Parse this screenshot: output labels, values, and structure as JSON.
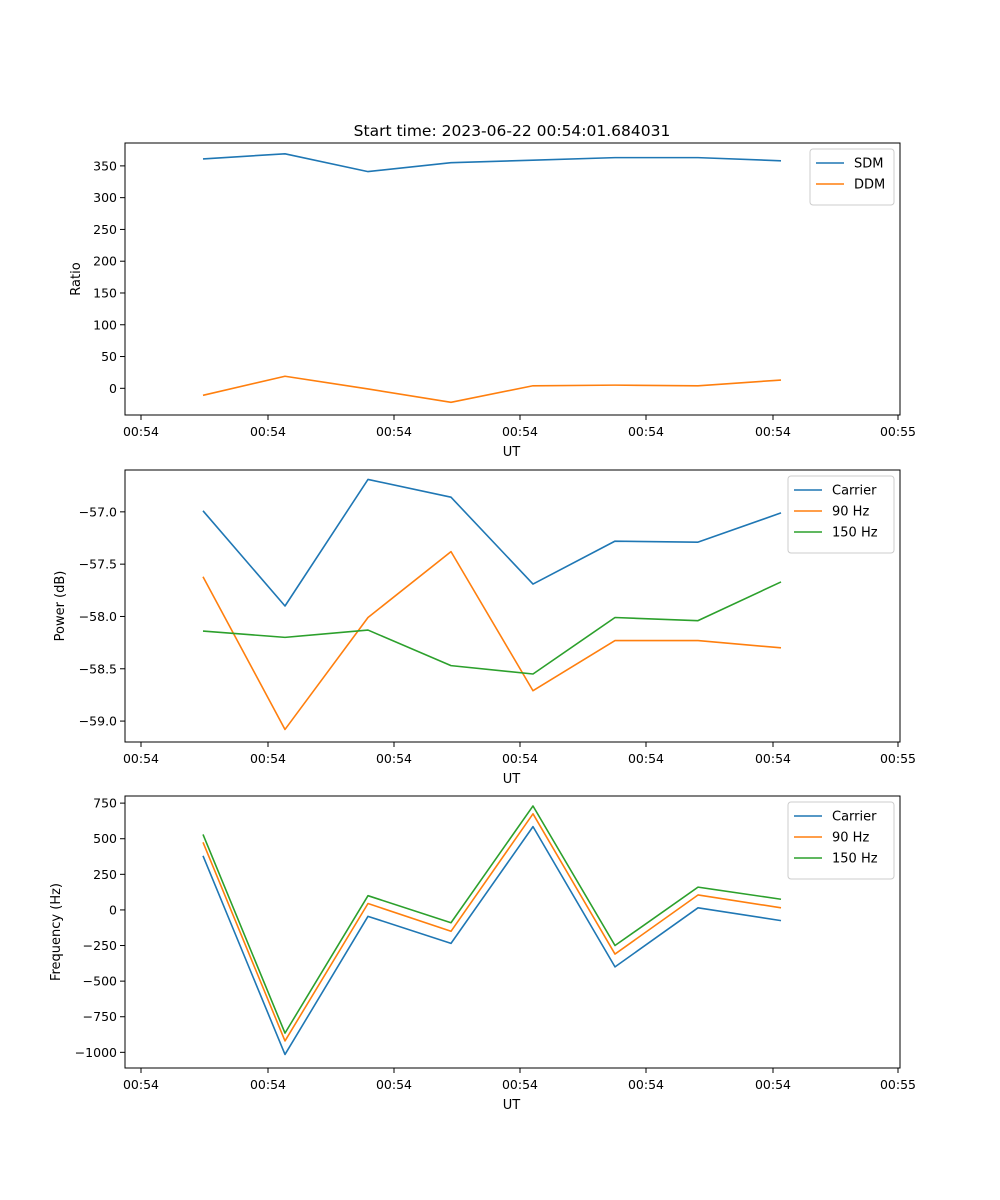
{
  "figure": {
    "title": "Start time: 2023-06-22 00:54:01.684031"
  },
  "chart_data": [
    {
      "type": "line",
      "xlabel": "UT",
      "ylabel": "Ratio",
      "x_tick_labels": [
        "00:54",
        "00:54",
        "00:54",
        "00:54",
        "00:54",
        "00:54",
        "00:55"
      ],
      "y_ticks": [
        0,
        50,
        100,
        150,
        200,
        250,
        300,
        350
      ],
      "ylim": [
        -42,
        386
      ],
      "legend": "top-right",
      "series": [
        {
          "name": "SDM",
          "color": "#1f77b4",
          "values": [
            361,
            369,
            341,
            355,
            359,
            363,
            363,
            358
          ]
        },
        {
          "name": "DDM",
          "color": "#ff7f0e",
          "values": [
            -11,
            19,
            -1,
            -22,
            4,
            5,
            4,
            13
          ]
        }
      ]
    },
    {
      "type": "line",
      "xlabel": "UT",
      "ylabel": "Power (dB)",
      "x_tick_labels": [
        "00:54",
        "00:54",
        "00:54",
        "00:54",
        "00:54",
        "00:54",
        "00:55"
      ],
      "y_ticks": [
        -59.0,
        -58.5,
        -58.0,
        -57.5,
        -57.0
      ],
      "y_tick_labels": [
        "−59.0",
        "−58.5",
        "−58.0",
        "−57.5",
        "−57.0"
      ],
      "ylim": [
        -59.2,
        -56.6
      ],
      "legend": "top-right",
      "series": [
        {
          "name": "Carrier",
          "color": "#1f77b4",
          "values": [
            -56.99,
            -57.9,
            -56.69,
            -56.86,
            -57.69,
            -57.28,
            -57.29,
            -57.01
          ]
        },
        {
          "name": "90 Hz",
          "color": "#ff7f0e",
          "values": [
            -57.62,
            -59.08,
            -58.01,
            -57.38,
            -58.71,
            -58.23,
            -58.23,
            -58.3
          ]
        },
        {
          "name": "150 Hz",
          "color": "#2ca02c",
          "values": [
            -58.14,
            -58.2,
            -58.13,
            -58.47,
            -58.55,
            -58.01,
            -58.04,
            -57.67
          ]
        }
      ]
    },
    {
      "type": "line",
      "xlabel": "UT",
      "ylabel": "Frequency (Hz)",
      "x_tick_labels": [
        "00:54",
        "00:54",
        "00:54",
        "00:54",
        "00:54",
        "00:54",
        "00:55"
      ],
      "y_ticks": [
        -1000,
        -750,
        -500,
        -250,
        0,
        250,
        500,
        750
      ],
      "y_tick_labels": [
        "−1000",
        "−750",
        "−500",
        "−250",
        "0",
        "250",
        "500",
        "750"
      ],
      "ylim": [
        -1110,
        800
      ],
      "legend": "top-right",
      "series": [
        {
          "name": "Carrier",
          "color": "#1f77b4",
          "values": [
            380,
            -1015,
            -45,
            -235,
            585,
            -400,
            15,
            -75
          ]
        },
        {
          "name": "90 Hz",
          "color": "#ff7f0e",
          "values": [
            475,
            -920,
            45,
            -150,
            675,
            -310,
            105,
            15
          ]
        },
        {
          "name": "150 Hz",
          "color": "#2ca02c",
          "values": [
            530,
            -865,
            100,
            -90,
            730,
            -250,
            160,
            75
          ]
        }
      ]
    }
  ]
}
